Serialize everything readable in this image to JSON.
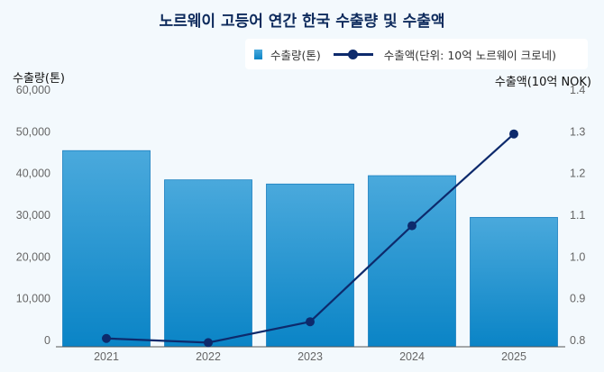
{
  "chart_data": {
    "type": "bar+line",
    "title": "노르웨이 고등어 연간 한국 수출량 및 수출액",
    "categories": [
      "2021",
      "2022",
      "2023",
      "2024",
      "2025"
    ],
    "series": [
      {
        "name": "수출량(톤)",
        "type": "bar",
        "axis": "left",
        "values": [
          47000,
          40000,
          39000,
          41000,
          31000
        ],
        "color": "#1a8fcf"
      },
      {
        "name": "수출액(단위: 10억 노르웨이 크로네)",
        "type": "line",
        "axis": "right",
        "values": [
          0.82,
          0.81,
          0.86,
          1.09,
          1.31
        ],
        "color": "#0d2a6c"
      }
    ],
    "ylabel_left": "수출량(톤)",
    "ylabel_right": "수출액(10억 NOK)",
    "ylim_left": [
      0,
      60000
    ],
    "yticks_left": [
      "0",
      "10,000",
      "20,000",
      "30,000",
      "40,000",
      "50,000",
      "60,000"
    ],
    "ylim_right": [
      0.8,
      1.4
    ],
    "yticks_right": [
      "0.8",
      "0.9",
      "1.0",
      "1.1",
      "1.2",
      "1.3",
      "1.4"
    ],
    "grid": false,
    "legend_position": "top-right"
  }
}
